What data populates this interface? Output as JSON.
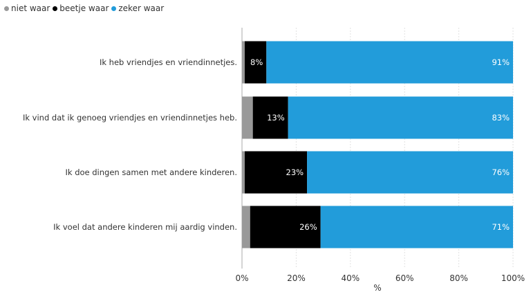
{
  "chart_data": {
    "type": "bar",
    "orientation": "horizontal",
    "stacked": true,
    "categories": [
      "Ik heb vriendjes en vriendinnetjes.",
      "Ik vind dat ik genoeg vriendjes en vriendinnetjes heb.",
      "Ik doe dingen samen met andere kinderen.",
      "Ik voel dat andere kinderen mij aardig vinden."
    ],
    "series": [
      {
        "name": "niet waar",
        "color": "#999999",
        "values": [
          1,
          4,
          1,
          3
        ],
        "labels": [
          "",
          "",
          "",
          ""
        ]
      },
      {
        "name": "beetje waar",
        "color": "#000000",
        "values": [
          8,
          13,
          23,
          26
        ],
        "labels": [
          "8%",
          "13%",
          "23%",
          "26%"
        ]
      },
      {
        "name": "zeker waar",
        "color": "#229cda",
        "values": [
          91,
          83,
          76,
          71
        ],
        "labels": [
          "91%",
          "83%",
          "76%",
          "71%"
        ]
      }
    ],
    "xlabel": "%",
    "xlim": [
      0,
      100
    ],
    "xticks": [
      "0%",
      "20%",
      "40%",
      "60%",
      "80%",
      "100%"
    ],
    "grid": true,
    "legend_position": "top-left"
  }
}
